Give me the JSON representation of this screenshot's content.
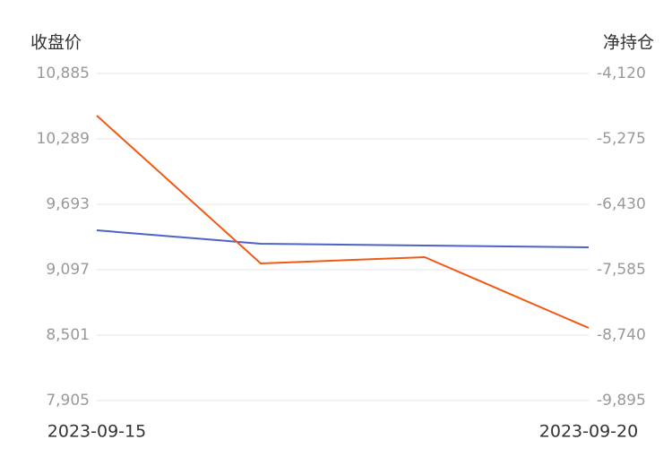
{
  "chart_data": {
    "type": "line",
    "y_label": "收盘价",
    "y2_label": "净持仓",
    "categories": [
      "2023-09-15",
      null,
      null,
      "2023-09-20"
    ],
    "series": [
      {
        "color": "#4e63c4",
        "values": [
          9456,
          9334,
          9317,
          9301
        ]
      },
      {
        "color": "#f05a14",
        "axis": "y2",
        "values": [
          -4864,
          -7474,
          -7363,
          -8613
        ]
      }
    ],
    "ylim": [
      7905,
      10885
    ],
    "yticks": [
      {
        "value": 7905,
        "label": "7,905"
      },
      {
        "value": 8501,
        "label": "8,501"
      },
      {
        "value": 9097,
        "label": "9,097"
      },
      {
        "value": 9693,
        "label": "9,693"
      },
      {
        "value": 10289,
        "label": "10,289"
      },
      {
        "value": 10885,
        "label": "10,885"
      }
    ],
    "y2lim": [
      -9895,
      -4120
    ],
    "y2ticks": [
      {
        "value": -9895,
        "label": "-9,895"
      },
      {
        "value": -8740,
        "label": "-8,740"
      },
      {
        "value": -7585,
        "label": "-7,585"
      },
      {
        "value": -6430,
        "label": "-6,430"
      },
      {
        "value": -5275,
        "label": "-5,275"
      },
      {
        "value": -4120,
        "label": "-4,120"
      }
    ],
    "grid": true
  }
}
